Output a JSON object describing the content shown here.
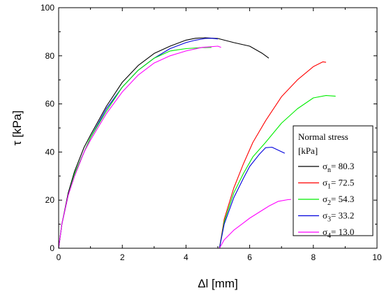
{
  "chart_data": {
    "type": "line",
    "title": "",
    "xlabel": "Δl [mm]",
    "ylabel": "τ [kPa]",
    "xlim": [
      0,
      10
    ],
    "ylim": [
      0,
      100
    ],
    "xticks": [
      0,
      2,
      4,
      6,
      8,
      10
    ],
    "yticks": [
      0,
      20,
      40,
      60,
      80,
      100
    ],
    "grid": false,
    "legend": {
      "placement": "right",
      "title_line1": "Normal stress",
      "title_line2": "[kPa]",
      "entries": [
        {
          "symbol": "σ",
          "sub": "n",
          "text": "= 80.3",
          "color": "#000000"
        },
        {
          "symbol": "σ",
          "sub": "1",
          "text": "= 72.5",
          "color": "#ff0000"
        },
        {
          "symbol": "σ",
          "sub": "2",
          "text": "= 54.3",
          "color": "#00ee00"
        },
        {
          "symbol": "σ",
          "sub": "3",
          "text": "= 33.2",
          "color": "#0000dd"
        },
        {
          "symbol": "σ",
          "sub": "4",
          "text": "= 13.0",
          "color": "#ff00ff"
        }
      ]
    },
    "series": [
      {
        "color": "#000000",
        "x": [
          0,
          0.1,
          0.3,
          0.5,
          0.8,
          1.0,
          1.5,
          2.0,
          2.5,
          3.0,
          3.5,
          4.0,
          4.3,
          4.6,
          5.0,
          5.5,
          6.0,
          6.4,
          6.6
        ],
        "y": [
          0,
          10,
          23,
          32,
          42,
          47,
          59,
          69,
          76,
          81,
          84,
          86.5,
          87.3,
          87.5,
          87.2,
          85.5,
          84,
          81,
          79
        ]
      },
      {
        "color": "#0000dd",
        "x": [
          0,
          0.1,
          0.3,
          0.5,
          0.8,
          1.0,
          1.5,
          2.0,
          2.5,
          3.0,
          3.5,
          4.0,
          4.3,
          4.6,
          4.8,
          5.0
        ],
        "y": [
          0,
          10,
          22,
          31,
          40,
          46,
          58,
          67,
          74,
          79,
          83,
          85.5,
          86.5,
          87.2,
          87.3,
          87
        ]
      },
      {
        "color": "#00ee00",
        "x": [
          0,
          0.1,
          0.3,
          0.5,
          0.8,
          1.0,
          1.5,
          2.0,
          2.5,
          3.0,
          3.5,
          4.0,
          4.5,
          4.8
        ],
        "y": [
          0,
          10,
          22,
          31,
          40,
          46,
          57,
          67,
          74,
          79,
          82,
          83,
          83.4,
          83.5
        ]
      },
      {
        "color": "#ff00ff",
        "x": [
          0,
          0.1,
          0.3,
          0.5,
          0.8,
          1.0,
          1.5,
          2.0,
          2.5,
          3.0,
          3.5,
          4.0,
          4.5,
          5.0,
          5.1
        ],
        "y": [
          0,
          10,
          22,
          30,
          40,
          45,
          56,
          65,
          72,
          77,
          80,
          82,
          83.5,
          84,
          83.5
        ]
      },
      {
        "color": "#ff0000",
        "x": [
          5.05,
          5.2,
          5.5,
          5.8,
          6.1,
          6.5,
          7.0,
          7.5,
          8.0,
          8.3,
          8.4
        ],
        "y": [
          0,
          12,
          25,
          35,
          44,
          53,
          63,
          70,
          75.5,
          77.5,
          77.3
        ]
      },
      {
        "color": "#00ee00",
        "x": [
          5.05,
          5.2,
          5.5,
          5.8,
          6.1,
          6.5,
          7.0,
          7.5,
          8.0,
          8.4,
          8.7
        ],
        "y": [
          0,
          11,
          23,
          31,
          38,
          44,
          52,
          58,
          62.5,
          63.5,
          63.2
        ]
      },
      {
        "color": "#0000dd",
        "x": [
          5.05,
          5.2,
          5.5,
          5.8,
          6.0,
          6.3,
          6.5,
          6.7,
          7.1
        ],
        "y": [
          0,
          10,
          21,
          29,
          34,
          39,
          41.8,
          42,
          39.5
        ]
      },
      {
        "color": "#ff00ff",
        "x": [
          5.05,
          5.2,
          5.5,
          5.8,
          6.0,
          6.3,
          6.6,
          6.9,
          7.2,
          7.3
        ],
        "y": [
          0,
          3.5,
          7.5,
          10.5,
          12.5,
          15,
          17.5,
          19.5,
          20.2,
          20.3
        ]
      }
    ]
  }
}
